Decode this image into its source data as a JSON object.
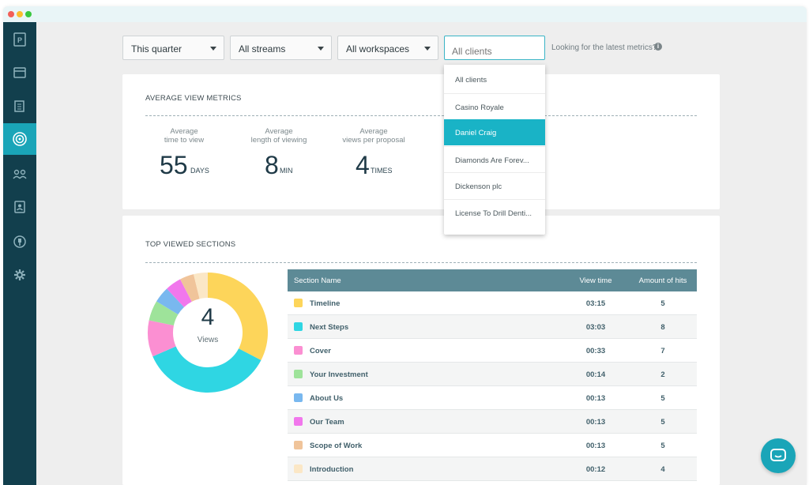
{
  "window": {
    "dots": [
      "#f25f58",
      "#fbbe2e",
      "#3ac83f"
    ]
  },
  "sidebar": {
    "items": [
      {
        "icon": "proposify-logo-icon"
      },
      {
        "icon": "inbox-icon"
      },
      {
        "icon": "documents-icon"
      },
      {
        "icon": "metrics-target-icon",
        "active": true
      },
      {
        "icon": "people-icon"
      },
      {
        "icon": "contacts-icon"
      },
      {
        "icon": "integrations-icon"
      },
      {
        "icon": "gear-icon"
      }
    ]
  },
  "filters": {
    "period": "This quarter",
    "streams": "All streams",
    "workspaces": "All workspaces",
    "clients_placeholder": "All clients",
    "hint": "Looking for the latest metrics?"
  },
  "clients_dropdown": {
    "items": [
      "All clients",
      "Casino Royale",
      "Daniel Craig",
      "Diamonds Are Forev...",
      "Dickenson plc",
      "License To Drill Denti..."
    ],
    "selected": "Daniel Craig"
  },
  "average_metrics": {
    "title": "AVERAGE VIEW METRICS",
    "metrics": [
      {
        "label_line1": "Average",
        "label_line2": "time to view",
        "value": "55",
        "unit": "DAYS"
      },
      {
        "label_line1": "Average",
        "label_line2": "length of viewing",
        "value": "8",
        "unit": "MIN"
      },
      {
        "label_line1": "Average",
        "label_line2": "views per proposal",
        "value": "4",
        "unit": "TIMES"
      }
    ]
  },
  "top_sections": {
    "title": "TOP VIEWED SECTIONS",
    "donut_value": "4",
    "donut_label": "Views",
    "columns": [
      "Section Name",
      "View time",
      "Amount of hits"
    ],
    "rows": [
      {
        "name": "Timeline",
        "time": "03:15",
        "hits": "5",
        "color": "#fdd55a"
      },
      {
        "name": "Next Steps",
        "time": "03:03",
        "hits": "8",
        "color": "#2fd6e3"
      },
      {
        "name": "Cover",
        "time": "00:33",
        "hits": "7",
        "color": "#fb8fd2"
      },
      {
        "name": "Your Investment",
        "time": "00:14",
        "hits": "2",
        "color": "#9ee39a"
      },
      {
        "name": "About Us",
        "time": "00:13",
        "hits": "5",
        "color": "#79b8ef"
      },
      {
        "name": "Our Team",
        "time": "00:13",
        "hits": "5",
        "color": "#f177ec"
      },
      {
        "name": "Scope of Work",
        "time": "00:13",
        "hits": "5",
        "color": "#f0c49a"
      },
      {
        "name": "Introduction",
        "time": "00:12",
        "hits": "4",
        "color": "#fbe7c6"
      }
    ]
  },
  "chart_data": {
    "type": "pie",
    "categories": [
      "Timeline",
      "Next Steps",
      "Cover",
      "Your Investment",
      "About Us",
      "Our Team",
      "Scope of Work",
      "Introduction"
    ],
    "values": [
      0.3,
      0.33,
      0.09,
      0.05,
      0.04,
      0.04,
      0.035,
      0.035
    ]
  },
  "chat": {
    "icon": "chat-bubble-icon"
  }
}
